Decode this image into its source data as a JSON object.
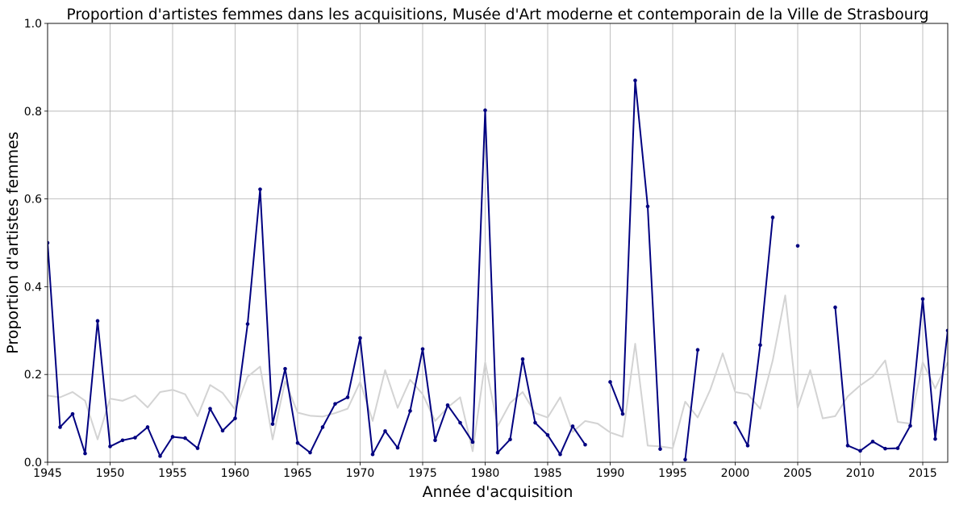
{
  "chart_data": {
    "type": "line",
    "title": "Proportion d'artistes femmes dans les acquisitions, Musée d'Art moderne et contemporain de la Ville de Strasbourg",
    "xlabel": "Année d'acquisition",
    "ylabel": "Proportion d'artistes femmes",
    "xlim": [
      1945,
      2017
    ],
    "ylim": [
      0,
      1.0
    ],
    "xticks": [
      1945,
      1950,
      1955,
      1960,
      1965,
      1970,
      1975,
      1980,
      1985,
      1990,
      1995,
      2000,
      2005,
      2010,
      2015
    ],
    "yticks": [
      0.0,
      0.2,
      0.4,
      0.6,
      0.8,
      1.0
    ],
    "ytick_labels": [
      "0.0",
      "0.2",
      "0.4",
      "0.6",
      "0.8",
      "1.0"
    ],
    "grid": true,
    "legend": false,
    "series": [
      {
        "color": "#d3d3d3",
        "markers": false,
        "points": [
          [
            1945,
            0.152
          ],
          [
            1946,
            0.148
          ],
          [
            1947,
            0.16
          ],
          [
            1948,
            0.14
          ],
          [
            1949,
            0.052
          ],
          [
            1950,
            0.145
          ],
          [
            1951,
            0.14
          ],
          [
            1952,
            0.152
          ],
          [
            1953,
            0.125
          ],
          [
            1954,
            0.16
          ],
          [
            1955,
            0.165
          ],
          [
            1956,
            0.155
          ],
          [
            1957,
            0.105
          ],
          [
            1958,
            0.176
          ],
          [
            1959,
            0.158
          ],
          [
            1960,
            0.12
          ],
          [
            1961,
            0.195
          ],
          [
            1962,
            0.218
          ],
          [
            1963,
            0.052
          ],
          [
            1964,
            0.185
          ],
          [
            1965,
            0.113
          ],
          [
            1966,
            0.106
          ],
          [
            1967,
            0.104
          ],
          [
            1968,
            0.112
          ],
          [
            1969,
            0.122
          ],
          [
            1970,
            0.183
          ],
          [
            1971,
            0.094
          ],
          [
            1972,
            0.21
          ],
          [
            1973,
            0.124
          ],
          [
            1974,
            0.188
          ],
          [
            1975,
            0.155
          ],
          [
            1976,
            0.094
          ],
          [
            1977,
            0.125
          ],
          [
            1978,
            0.148
          ],
          [
            1979,
            0.025
          ],
          [
            1980,
            0.228
          ],
          [
            1981,
            0.082
          ],
          [
            1982,
            0.135
          ],
          [
            1983,
            0.16
          ],
          [
            1984,
            0.112
          ],
          [
            1985,
            0.102
          ],
          [
            1986,
            0.148
          ],
          [
            1987,
            0.069
          ],
          [
            1988,
            0.094
          ],
          [
            1989,
            0.088
          ],
          [
            1990,
            0.068
          ],
          [
            1991,
            0.058
          ],
          [
            1992,
            0.27
          ],
          [
            1993,
            0.038
          ],
          [
            1994,
            0.036
          ],
          [
            1995,
            0.032
          ],
          [
            1996,
            0.138
          ],
          [
            1997,
            0.102
          ],
          [
            1998,
            0.165
          ],
          [
            1999,
            0.248
          ],
          [
            2000,
            0.16
          ],
          [
            2001,
            0.155
          ],
          [
            2002,
            0.122
          ],
          [
            2003,
            0.232
          ],
          [
            2004,
            0.38
          ],
          [
            2005,
            0.124
          ],
          [
            2006,
            0.21
          ],
          [
            2007,
            0.1
          ],
          [
            2008,
            0.105
          ],
          [
            2009,
            0.15
          ],
          [
            2010,
            0.175
          ],
          [
            2011,
            0.195
          ],
          [
            2012,
            0.232
          ],
          [
            2013,
            0.092
          ],
          [
            2014,
            0.088
          ],
          [
            2015,
            0.228
          ],
          [
            2016,
            0.168
          ],
          [
            2017,
            0.228
          ]
        ]
      },
      {
        "color": "#000080",
        "markers": true,
        "points": [
          [
            1945,
            0.5
          ],
          [
            1946,
            0.08
          ],
          [
            1947,
            0.11
          ],
          [
            1948,
            0.02
          ],
          [
            1949,
            0.322
          ],
          [
            1950,
            0.036
          ],
          [
            1951,
            0.05
          ],
          [
            1952,
            0.056
          ],
          [
            1953,
            0.08
          ],
          [
            1954,
            0.014
          ],
          [
            1955,
            0.058
          ],
          [
            1956,
            0.055
          ],
          [
            1957,
            0.032
          ],
          [
            1958,
            0.122
          ],
          [
            1959,
            0.072
          ],
          [
            1960,
            0.1
          ],
          [
            1961,
            0.315
          ],
          [
            1962,
            0.622
          ],
          [
            1963,
            0.087
          ],
          [
            1964,
            0.213
          ],
          [
            1965,
            0.044
          ],
          [
            1966,
            0.022
          ],
          [
            1967,
            0.08
          ],
          [
            1968,
            0.133
          ],
          [
            1969,
            0.148
          ],
          [
            1970,
            0.283
          ],
          [
            1971,
            0.018
          ],
          [
            1972,
            0.071
          ],
          [
            1973,
            0.033
          ],
          [
            1974,
            0.117
          ],
          [
            1975,
            0.258
          ],
          [
            1976,
            0.05
          ],
          [
            1977,
            0.13
          ],
          [
            1978,
            0.09
          ],
          [
            1979,
            0.046
          ],
          [
            1980,
            0.802
          ],
          [
            1981,
            0.022
          ],
          [
            1982,
            0.052
          ],
          [
            1983,
            0.235
          ],
          [
            1984,
            0.09
          ],
          [
            1985,
            0.062
          ],
          [
            1986,
            0.018
          ],
          [
            1987,
            0.082
          ],
          [
            1988,
            0.04
          ],
          [
            1989,
            null
          ],
          [
            1990,
            0.183
          ],
          [
            1991,
            0.11
          ],
          [
            1992,
            0.87
          ],
          [
            1993,
            0.583
          ],
          [
            1994,
            0.03
          ],
          [
            1995,
            null
          ],
          [
            1996,
            0.006
          ],
          [
            1997,
            0.256
          ],
          [
            1998,
            null
          ],
          [
            1999,
            null
          ],
          [
            2000,
            0.09
          ],
          [
            2001,
            0.038
          ],
          [
            2002,
            0.267
          ],
          [
            2003,
            0.558
          ],
          [
            2004,
            null
          ],
          [
            2005,
            0.493
          ],
          [
            2006,
            null
          ],
          [
            2007,
            null
          ],
          [
            2008,
            0.353
          ],
          [
            2009,
            0.038
          ],
          [
            2010,
            0.026
          ],
          [
            2011,
            0.047
          ],
          [
            2012,
            0.031
          ],
          [
            2013,
            0.032
          ],
          [
            2014,
            0.083
          ],
          [
            2015,
            0.372
          ],
          [
            2016,
            0.053
          ],
          [
            2017,
            0.3
          ]
        ]
      }
    ]
  }
}
